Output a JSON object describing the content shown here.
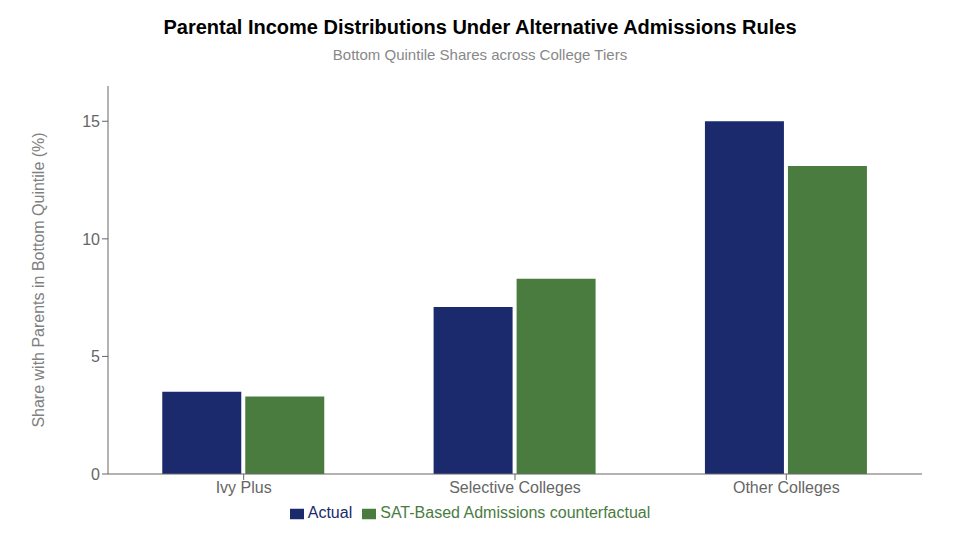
{
  "chart_data": {
    "type": "bar",
    "title": "Parental Income Distributions Under Alternative Admissions Rules",
    "subtitle": "Bottom Quintile Shares across College Tiers",
    "ylabel": "Share with Parents in Bottom Quintile (%)",
    "categories": [
      "Ivy Plus",
      "Selective Colleges",
      "Other Colleges"
    ],
    "series": [
      {
        "name": "Actual",
        "color": "#1a2a6c",
        "values": [
          3.5,
          7.1,
          15.0
        ]
      },
      {
        "name": "SAT-Based Admissions counterfactual",
        "color": "#4a7c3f",
        "values": [
          3.3,
          8.3,
          13.1
        ]
      }
    ],
    "ylim": [
      0,
      16.5
    ],
    "yticks": [
      0,
      5,
      10,
      15
    ],
    "grid": false,
    "legend": "bottom"
  }
}
